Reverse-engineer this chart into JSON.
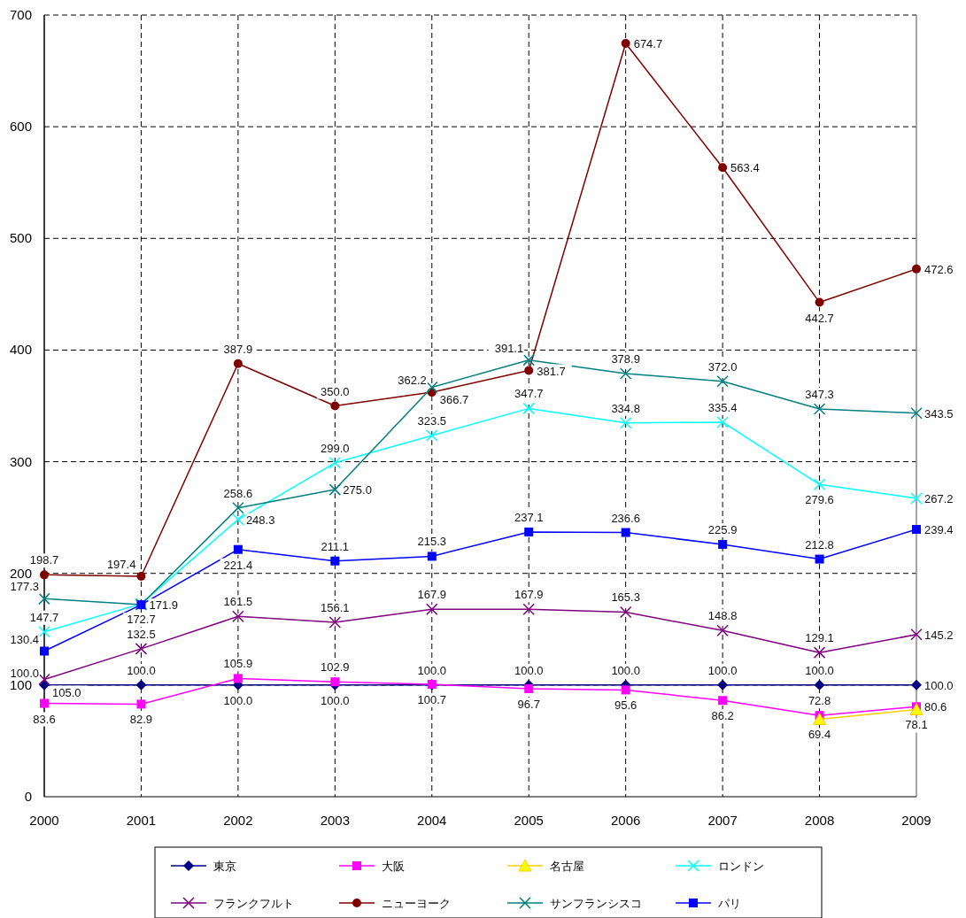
{
  "chart_data": {
    "type": "line",
    "x": [
      2000,
      2001,
      2002,
      2003,
      2004,
      2005,
      2006,
      2007,
      2008,
      2009
    ],
    "xlim": [
      2000,
      2009
    ],
    "xticks": [
      2000,
      2001,
      2002,
      2003,
      2004,
      2005,
      2006,
      2007,
      2008,
      2009
    ],
    "ylim": [
      0,
      700
    ],
    "yticks": [
      0,
      100,
      200,
      300,
      400,
      500,
      600,
      700
    ],
    "grid": true,
    "legend": "bottom",
    "line_style": "solid",
    "series": [
      {
        "name": "東京",
        "color": "#000080",
        "marker": "diamond",
        "values": [
          100.0,
          100.0,
          100.0,
          100.0,
          100.0,
          100.0,
          100.0,
          100.0,
          100.0,
          100.0
        ],
        "value_labels": [
          "100.0",
          "100.0",
          "100.0",
          "100.0",
          "100.0",
          "100.0",
          "100.0",
          "100.0",
          "100.0",
          "100.0"
        ]
      },
      {
        "name": "大阪",
        "color": "#ff00ff",
        "marker": "square",
        "values": [
          83.6,
          82.9,
          105.9,
          102.9,
          100.7,
          96.7,
          95.6,
          86.2,
          72.8,
          80.6
        ],
        "value_labels": [
          "83.6",
          "82.9",
          "105.9",
          "102.9",
          "100.7",
          "96.7",
          "95.6",
          "86.2",
          "72.8",
          "80.6"
        ]
      },
      {
        "name": "名古屋",
        "color": "#ffcc00",
        "marker": "triangle",
        "values": [
          null,
          null,
          null,
          null,
          null,
          null,
          null,
          null,
          69.4,
          78.1
        ],
        "value_labels": [
          null,
          null,
          null,
          null,
          null,
          null,
          null,
          null,
          "69.4",
          "78.1"
        ]
      },
      {
        "name": "ロンドン",
        "color": "#00ffff",
        "marker": "cross",
        "values": [
          147.7,
          172.7,
          248.3,
          299.0,
          323.5,
          347.7,
          334.8,
          335.4,
          279.6,
          267.2
        ],
        "value_labels": [
          "147.7",
          "172.7",
          "248.3",
          "299.0",
          "323.5",
          "347.7",
          "334.8",
          "335.4",
          "279.6",
          "267.2"
        ]
      },
      {
        "name": "フランクフルト",
        "color": "#800080",
        "marker": "cross",
        "values": [
          105.0,
          132.5,
          161.5,
          156.1,
          167.9,
          167.9,
          165.3,
          148.8,
          129.1,
          145.2
        ],
        "value_labels": [
          "105.0",
          "132.5",
          "161.5",
          "156.1",
          "167.9",
          "167.9",
          "165.3",
          "148.8",
          "129.1",
          "145.2"
        ]
      },
      {
        "name": "ニューヨーク",
        "color": "#800000",
        "marker": "circle",
        "values": [
          198.7,
          197.4,
          387.9,
          350.0,
          362.2,
          381.7,
          674.7,
          563.4,
          442.7,
          472.6
        ],
        "value_labels": [
          "198.7",
          "197.4",
          "387.9",
          "350.0",
          "362.2",
          "381.7",
          "674.7",
          "563.4",
          "442.7",
          "472.6"
        ]
      },
      {
        "name": "サンフランシスコ",
        "color": "#008080",
        "marker": "cross",
        "values": [
          177.3,
          172.0,
          258.6,
          275.0,
          366.7,
          391.1,
          378.9,
          372.0,
          347.3,
          343.5
        ],
        "value_labels": [
          "177.3",
          null,
          "258.6",
          "275.0",
          "366.7",
          "391.1",
          "378.9",
          "372.0",
          "347.3",
          "343.5"
        ]
      },
      {
        "name": "パリ",
        "color": "#0000ff",
        "marker": "square",
        "values": [
          130.4,
          171.9,
          221.4,
          211.1,
          215.3,
          237.1,
          236.6,
          225.9,
          212.8,
          239.4
        ],
        "value_labels": [
          "130.4",
          "171.9",
          "221.4",
          "211.1",
          "215.3",
          "237.1",
          "236.6",
          "225.9",
          "212.8",
          "239.4"
        ]
      }
    ]
  }
}
